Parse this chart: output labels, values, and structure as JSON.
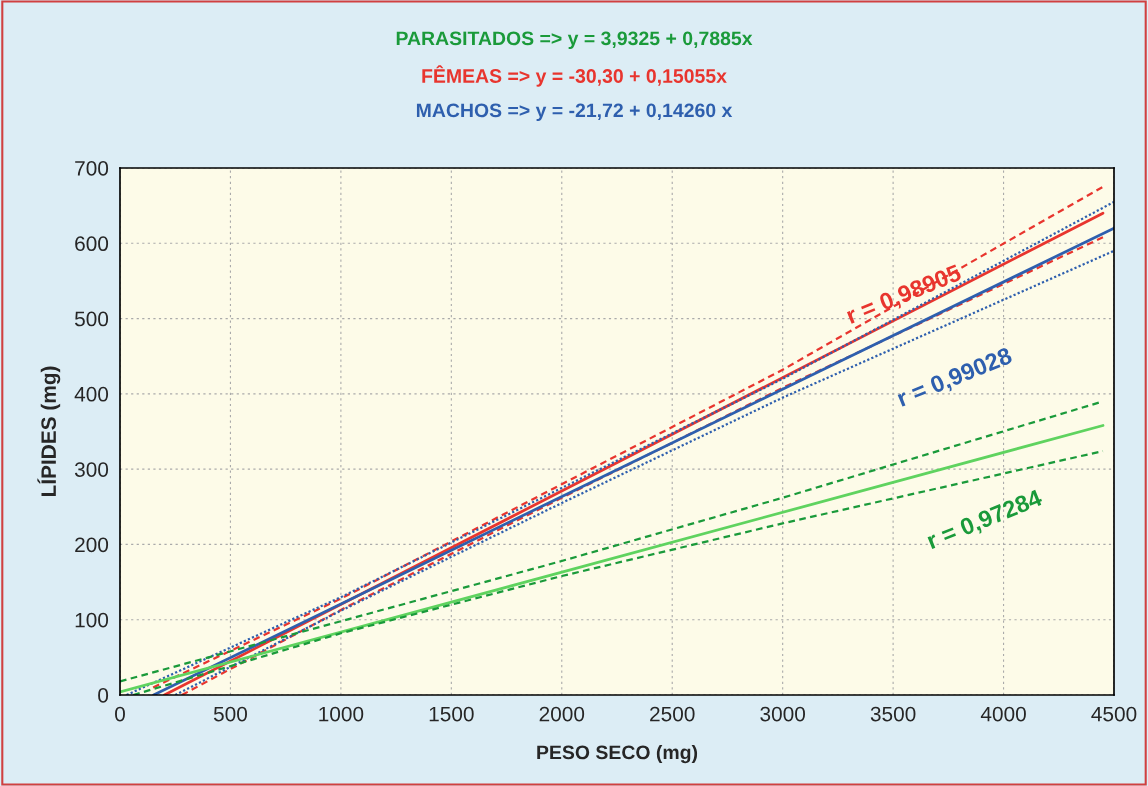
{
  "chart_data": {
    "type": "line",
    "xlabel": "PESO SECO (mg)",
    "ylabel": "LÍPIDES (mg)",
    "xlim": [
      0,
      4500
    ],
    "ylim": [
      0,
      700
    ],
    "xticks": [
      0,
      500,
      1000,
      1500,
      2000,
      2500,
      3000,
      3500,
      4000,
      4500
    ],
    "yticks": [
      0,
      100,
      200,
      300,
      400,
      500,
      600,
      700
    ],
    "grid": true,
    "series": [
      {
        "color": "#e8352e",
        "line_style": "solid",
        "x": [
          201,
          4450
        ],
        "values": [
          0,
          640
        ]
      },
      {
        "color": "#e8352e",
        "line_style": "dashed",
        "x": [
          150,
          1000,
          2000,
          3000,
          4450
        ],
        "values": [
          10,
          128,
          280,
          432,
          675
        ]
      },
      {
        "color": "#e8352e",
        "line_style": "dashed",
        "x": [
          280,
          1000,
          2000,
          3000,
          4450
        ],
        "values": [
          0,
          113,
          262,
          408,
          608
        ]
      },
      {
        "color": "#2e5fae",
        "line_style": "solid",
        "x": [
          152,
          4500
        ],
        "values": [
          0,
          620
        ]
      },
      {
        "color": "#2e5fae",
        "line_style": "dotted",
        "x": [
          30,
          1000,
          2000,
          3000,
          4500
        ],
        "values": [
          0,
          130,
          275,
          420,
          655
        ]
      },
      {
        "color": "#2e5fae",
        "line_style": "dotted",
        "x": [
          250,
          1000,
          2000,
          3000,
          4500
        ],
        "values": [
          0,
          112,
          255,
          395,
          590
        ]
      },
      {
        "color": "#5fd35f",
        "line_style": "solid",
        "x": [
          0,
          4450
        ],
        "values": [
          4,
          358
        ]
      },
      {
        "color": "#1a9a3a",
        "line_style": "dashed",
        "x": [
          0,
          1000,
          2000,
          3000,
          4450
        ],
        "values": [
          18,
          98,
          178,
          262,
          390
        ]
      },
      {
        "color": "#1a9a3a",
        "line_style": "dashed",
        "x": [
          60,
          1000,
          2000,
          3000,
          4450
        ],
        "values": [
          0,
          82,
          158,
          228,
          324
        ]
      }
    ],
    "annotations": [
      "PARASITADOS => y = 3,9325 + 0,7885x",
      "FÊMEAS => y = -30,30 + 0,15055x",
      "MACHOS => y = -21,72 + 0,14260 x",
      {
        "text": "r = 0,98905",
        "x": 3550,
        "y": 530
      },
      "r = 0,99028",
      "r = 0,97284"
    ]
  }
}
